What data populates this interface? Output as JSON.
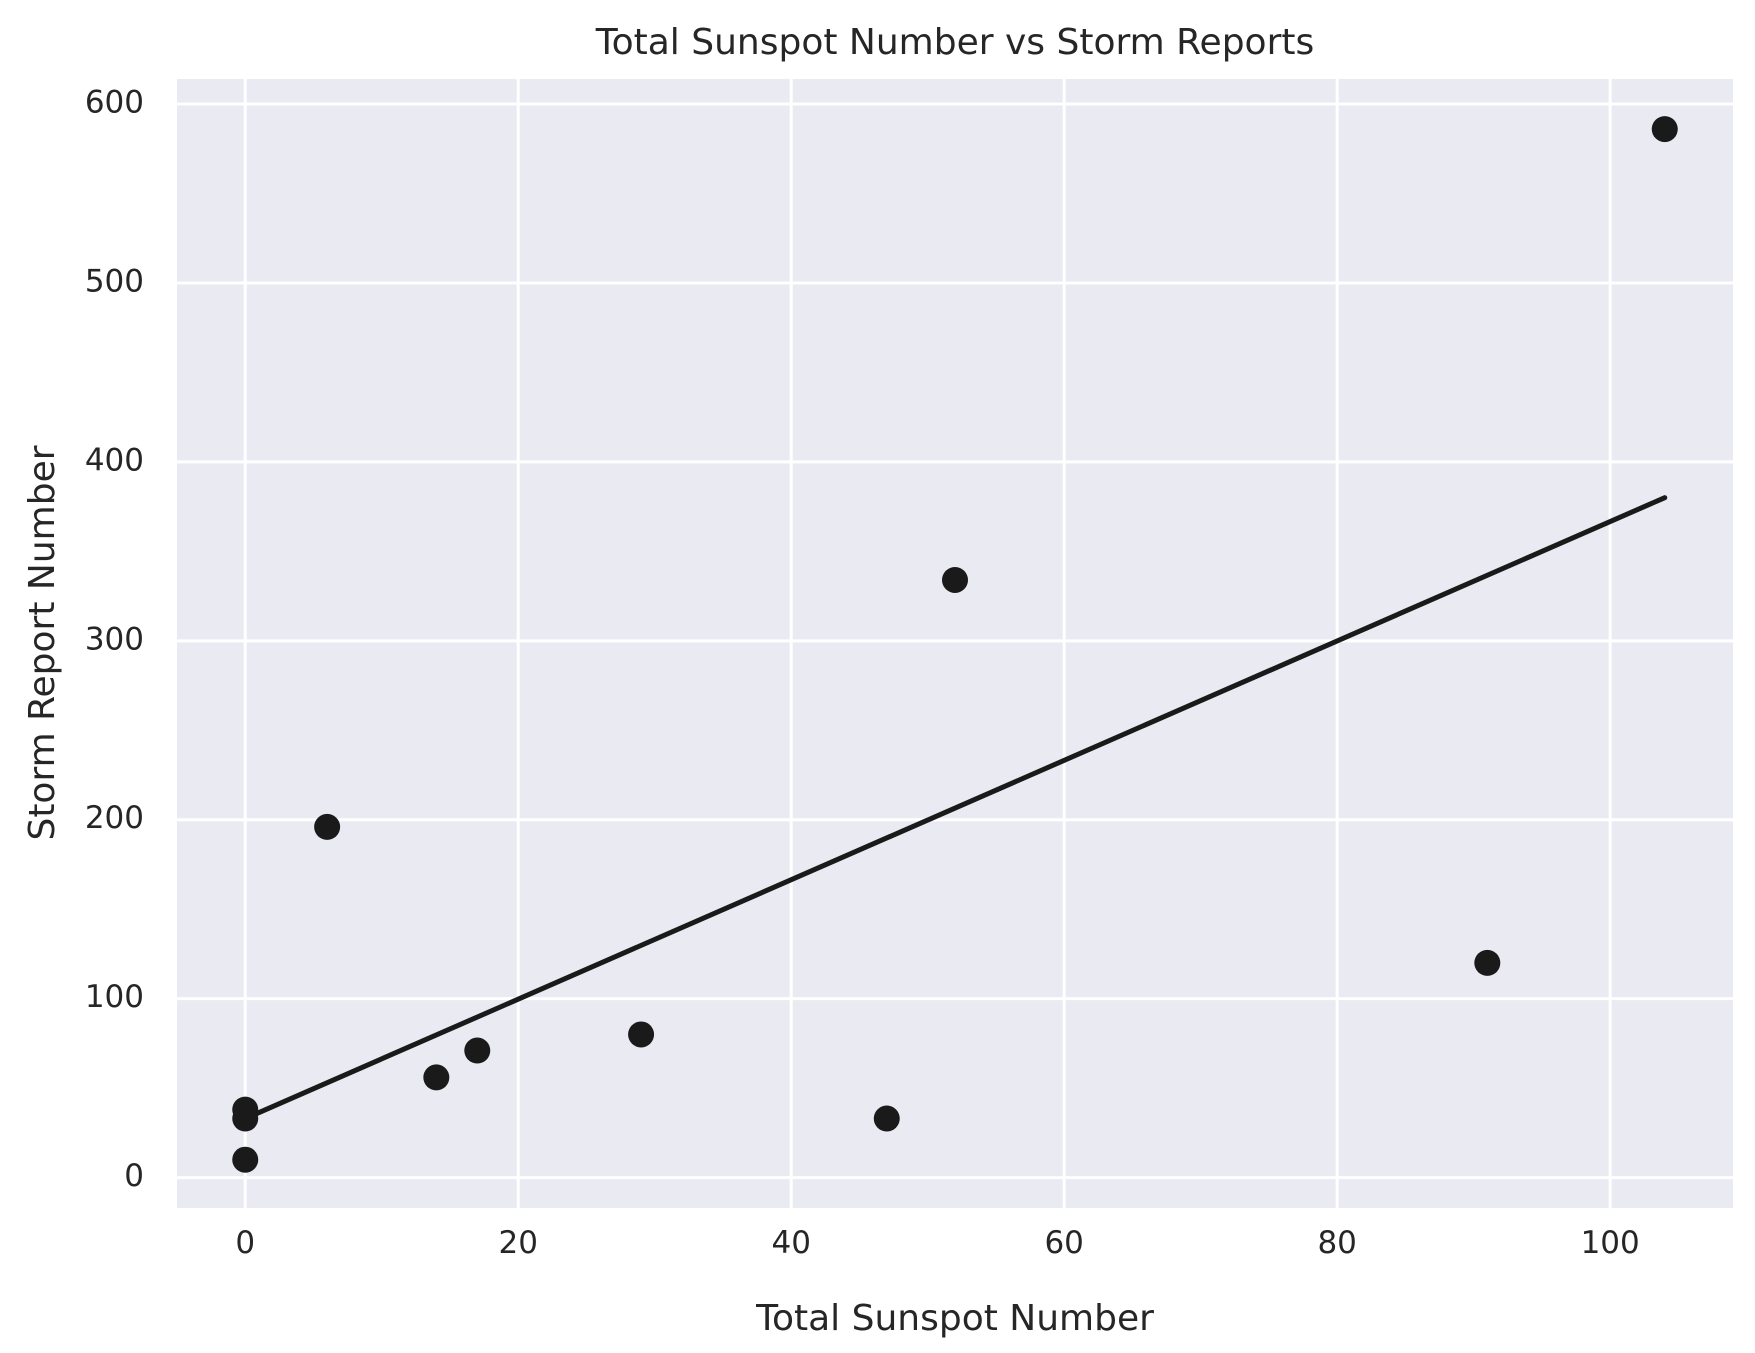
{
  "chart_data": {
    "type": "scatter",
    "title": "Total Sunspot Number vs Storm Reports",
    "xlabel": "Total Sunspot Number",
    "ylabel": "Storm Report Number",
    "xlim": [
      -5,
      109
    ],
    "ylim": [
      -17,
      614
    ],
    "xticks": [
      0,
      20,
      40,
      60,
      80,
      100
    ],
    "yticks": [
      0,
      100,
      200,
      300,
      400,
      500,
      600
    ],
    "grid": true,
    "legend": "none",
    "series": [
      {
        "type": "scatter",
        "points": [
          {
            "x": 0,
            "y": 38
          },
          {
            "x": 0,
            "y": 33
          },
          {
            "x": 0,
            "y": 10
          },
          {
            "x": 6,
            "y": 196
          },
          {
            "x": 14,
            "y": 56
          },
          {
            "x": 17,
            "y": 71
          },
          {
            "x": 29,
            "y": 80
          },
          {
            "x": 47,
            "y": 33
          },
          {
            "x": 52,
            "y": 334
          },
          {
            "x": 91,
            "y": 120
          },
          {
            "x": 104,
            "y": 586
          }
        ]
      },
      {
        "type": "line",
        "points": [
          {
            "x": 0,
            "y": 33
          },
          {
            "x": 104,
            "y": 380
          }
        ]
      }
    ],
    "colors": {
      "background": "#eaeaf2",
      "grid": "#ffffff",
      "marker": "#1a1a1a",
      "line": "#1a1a1a",
      "text": "#262626"
    }
  }
}
